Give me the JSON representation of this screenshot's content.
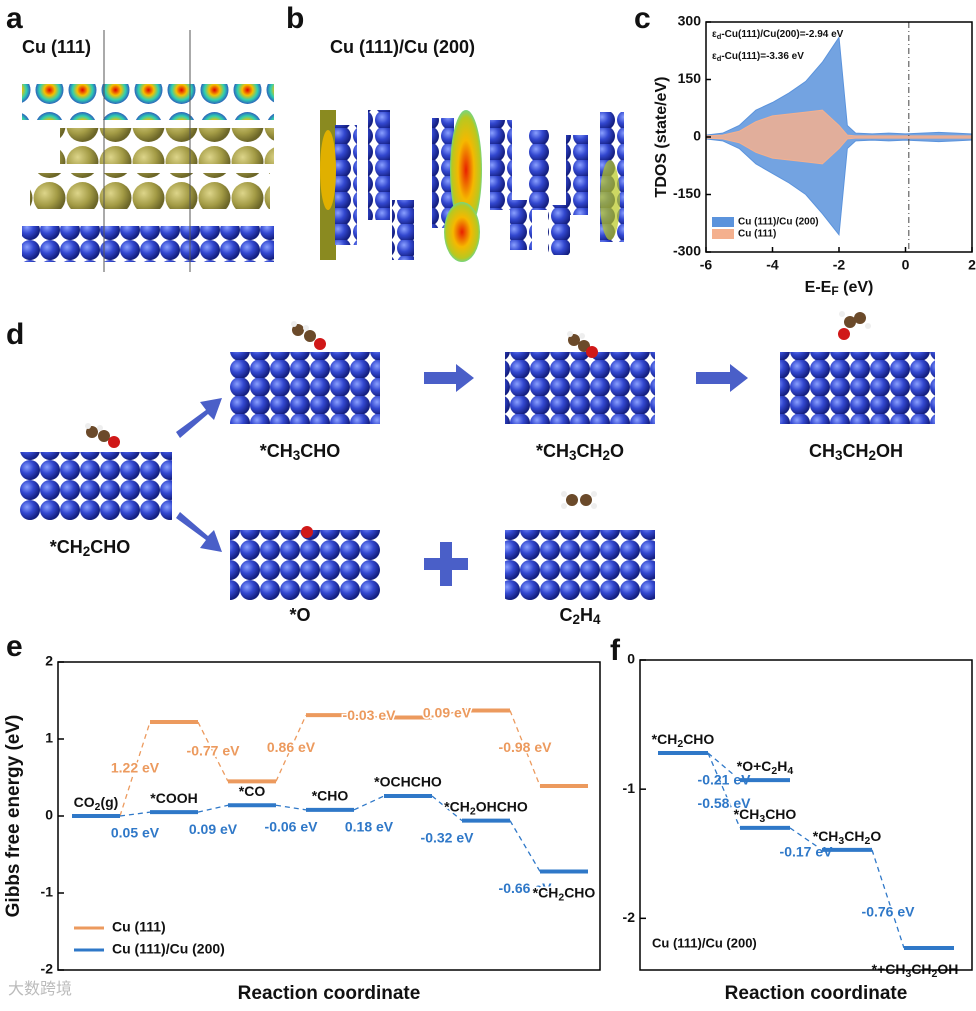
{
  "figure": {
    "panel_labels": {
      "a": "a",
      "b": "b",
      "c": "c",
      "d": "d",
      "e": "e",
      "f": "f"
    },
    "a_title": "Cu (111)",
    "b_title": "Cu (111)/Cu (200)",
    "d_labels": [
      "*CH2CHO",
      "*CH3CHO",
      "*CH3CH2O",
      "CH3CH2OH",
      "*O",
      "C2H4"
    ],
    "watermark": "大数跨境"
  },
  "chart_data": [
    {
      "type": "area",
      "ylabel": "TDOS (state/eV)",
      "xlabel": {
        "text": "E-E",
        "subscript": "F",
        "suffix": " (eV)"
      },
      "x": [
        -6,
        -5.5,
        -5,
        -4.5,
        -4,
        -3.5,
        -3,
        -2.5,
        -2,
        -1.75,
        -1.5,
        -1,
        -0.5,
        0,
        0.5,
        1,
        1.5,
        2
      ],
      "series": [
        {
          "name": "Cu (111)/Cu (200)",
          "color": "#5b93dc",
          "values": [
            5,
            10,
            30,
            70,
            90,
            115,
            145,
            195,
            260,
            30,
            10,
            8,
            10,
            8,
            10,
            12,
            10,
            8
          ],
          "values_down": [
            -5,
            -10,
            -30,
            -70,
            -95,
            -120,
            -150,
            -200,
            -255,
            -30,
            -10,
            -8,
            -10,
            -8,
            -10,
            -12,
            -10,
            -8
          ]
        },
        {
          "name": "Cu (111)",
          "color": "#f4b08e",
          "values": [
            3,
            5,
            15,
            40,
            55,
            60,
            65,
            70,
            30,
            5,
            3,
            3,
            3,
            3,
            3,
            3,
            3,
            3
          ],
          "values_down": [
            -3,
            -5,
            -15,
            -40,
            -55,
            -60,
            -65,
            -70,
            -30,
            -5,
            -3,
            -3,
            -3,
            -3,
            -3,
            -3,
            -3,
            -3
          ]
        }
      ],
      "annotations": [
        {
          "symbol": "ε",
          "subscript": "d",
          "text": "-Cu(111)/Cu(200)=-2.94 eV"
        },
        {
          "symbol": "ε",
          "subscript": "d",
          "text": "-Cu(111)=-3.36 eV"
        }
      ],
      "vline": 0.1,
      "xlim": [
        -6,
        2
      ],
      "xticks": [
        -6,
        -4,
        -2,
        0,
        2
      ],
      "ylim": [
        -300,
        300
      ],
      "yticks": [
        -300,
        -150,
        0,
        150,
        300
      ],
      "legend": "lower left"
    },
    {
      "type": "energy",
      "ylabel": "Gibbs free energy (eV)",
      "xlabel": "Reaction coordinate",
      "categories": [
        "CO2(g)",
        "*COOH",
        "*CO",
        "*CHO",
        "*OCHCHO",
        "*CH2OHCHO",
        "*CH2CHO"
      ],
      "series": [
        {
          "name": "Cu (111)",
          "color": "#ec9a5e",
          "values": [
            0,
            1.22,
            0.45,
            1.31,
            1.28,
            1.37,
            0.39
          ],
          "step_labels": [
            "1.22 eV",
            "-0.77 eV",
            "0.86 eV",
            "-0.03 eV",
            "0.09 eV",
            "-0.98 eV"
          ]
        },
        {
          "name": "Cu (111)/Cu (200)",
          "color": "#2f78c8",
          "values": [
            0,
            0.05,
            0.14,
            0.08,
            0.26,
            -0.06,
            -0.72
          ],
          "step_labels": [
            "0.05 eV",
            "0.09 eV",
            "-0.06 eV",
            "0.18 eV",
            "-0.32 eV",
            "-0.66 eV"
          ]
        }
      ],
      "ylim": [
        -2,
        2
      ],
      "yticks": [
        -2,
        -1,
        0,
        1,
        2
      ],
      "legend": "lower left"
    },
    {
      "type": "pathway",
      "xlabel": "Reaction coordinate",
      "annotation": "Cu (111)/Cu (200)",
      "color": "#2f78c8",
      "levels": [
        {
          "label": "*CH2CHO",
          "value": -0.72
        },
        {
          "label": "*O+C2H4",
          "value": -0.93
        },
        {
          "label": "*CH3CHO",
          "value": -1.3
        },
        {
          "label": "*CH3CH2O",
          "value": -1.47
        },
        {
          "label": "*+CH3CH2OH",
          "value": -2.23
        }
      ],
      "steps": [
        {
          "from": 0,
          "to": 1,
          "label": "-0.21 eV"
        },
        {
          "from": 0,
          "to": 2,
          "label": "-0.58 eV"
        },
        {
          "from": 2,
          "to": 3,
          "label": "-0.17 eV"
        },
        {
          "from": 3,
          "to": 4,
          "label": "-0.76 eV"
        }
      ],
      "ylim": [
        -2.4,
        0
      ],
      "yticks": [
        0,
        -1,
        -2
      ]
    }
  ]
}
